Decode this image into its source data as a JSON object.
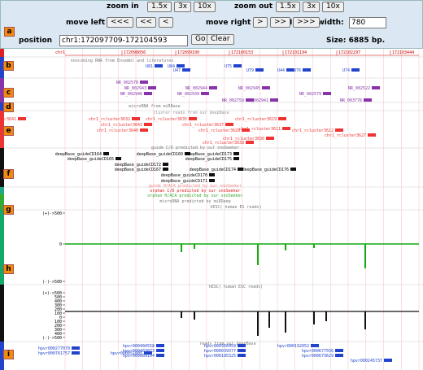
{
  "controls": {
    "zoom_in": "zoom in",
    "zoom_in_buttons": [
      "1.5x",
      "3x",
      "10x"
    ],
    "zoom_out": "zoom out",
    "zoom_out_buttons": [
      "1.5x",
      "3x",
      "10x"
    ],
    "move_left": "move left",
    "move_left_buttons": [
      "<<<",
      "<<",
      "<"
    ],
    "move_right": "move right",
    "move_right_buttons": [
      ">",
      ">>",
      ">>>"
    ],
    "image_width_label": "Image width:",
    "image_width": "780",
    "position_label": "position",
    "position": "chr1:172097709-172104593",
    "go": "Go",
    "clear": "Clear",
    "size": "Size: 6885 bp."
  },
  "panel_labels": [
    "a",
    "b",
    "c",
    "d",
    "e",
    "f",
    "g",
    "h",
    "i"
  ],
  "ruler": {
    "chrom": "chr1",
    "ticks": [
      "172098056",
      "172099100",
      "172100153",
      "172101194",
      "172102297",
      "172103444"
    ]
  },
  "tracks": [
    {
      "title": "noncoding RNA from Ensembl and literatures",
      "features": [
        "U81",
        "U84",
        "U75",
        "U47",
        "U79",
        "U44",
        "U76",
        "U74"
      ]
    },
    {
      "title": "",
      "features": [
        "NR_002578",
        "NR_002943",
        "NR_002946",
        "NR_002944",
        "NR_002939",
        "NR_002945",
        "NR_002759",
        "NR_002941",
        "NR_002579",
        "NR_002522",
        "NR_003776"
      ]
    },
    {
      "title": "microRNA from miRBase",
      "features": []
    },
    {
      "title": "cluster reads from our deepBase",
      "features": [
        "chr1_rcluster3641",
        "chr1_rcluster3632",
        "chr1_rcluster3635",
        "chr1_rcluster3619",
        "chr1_rcluster3643",
        "chr1_rcluster3637",
        "chr1_rcluster3611",
        "chr1_rcluster3628",
        "chr1_rcluster3640",
        "chr1_rcluster3612",
        "chr1_rcluster3630",
        "chr1_rcluster3627",
        "chr1_rcluster3638"
      ]
    },
    {
      "title": "guide C/D predicted by our snoSeeker",
      "features": [
        "deepBase_guideCD164",
        "deepBase_guideCD160",
        "deepBase_guideCD173",
        "deepBase_guideCD165",
        "deepBase_guideCD175",
        "deepBase_guideCD172",
        "deepBase_guideCD167",
        "deepBase_guideCD174",
        "deepBase_guideCD176",
        "deepBase_guideCD170",
        "deepBase_guideCD171"
      ]
    },
    {
      "title": "guide H/ACA predicted by our snoSeeker",
      "features": []
    },
    {
      "title": "orphan C/D predicted by our snoSeeker",
      "features": []
    },
    {
      "title": "orphan H/ACA predicted by our snoSeeker",
      "features": []
    },
    {
      "title": "microRNA predicted by miRDeep",
      "features": []
    },
    {
      "title": "reads from our deepBase",
      "features": [
        "hpvr000277070",
        "hpvr000761757",
        "hpvr000051005",
        "hpvr000484558",
        "hpvr000483873",
        "hpvr000089194",
        "hpvr000366459",
        "hpvr000039377",
        "hpvr000185325",
        "hpvr000192052",
        "hpvr000677556",
        "hpvr000673629",
        "hpvr000245737"
      ]
    }
  ],
  "signal": [
    {
      "title": "hESC( human ES reads)",
      "axis": [
        "(+)->500",
        "0",
        "(-)->500"
      ]
    },
    {
      "title": "hESC( human ESC reads)",
      "axis": [
        "(+)->500",
        "500",
        "400",
        "300",
        "200",
        "100",
        "0",
        "100",
        "200",
        "300",
        "400",
        "(-)->500"
      ]
    }
  ]
}
